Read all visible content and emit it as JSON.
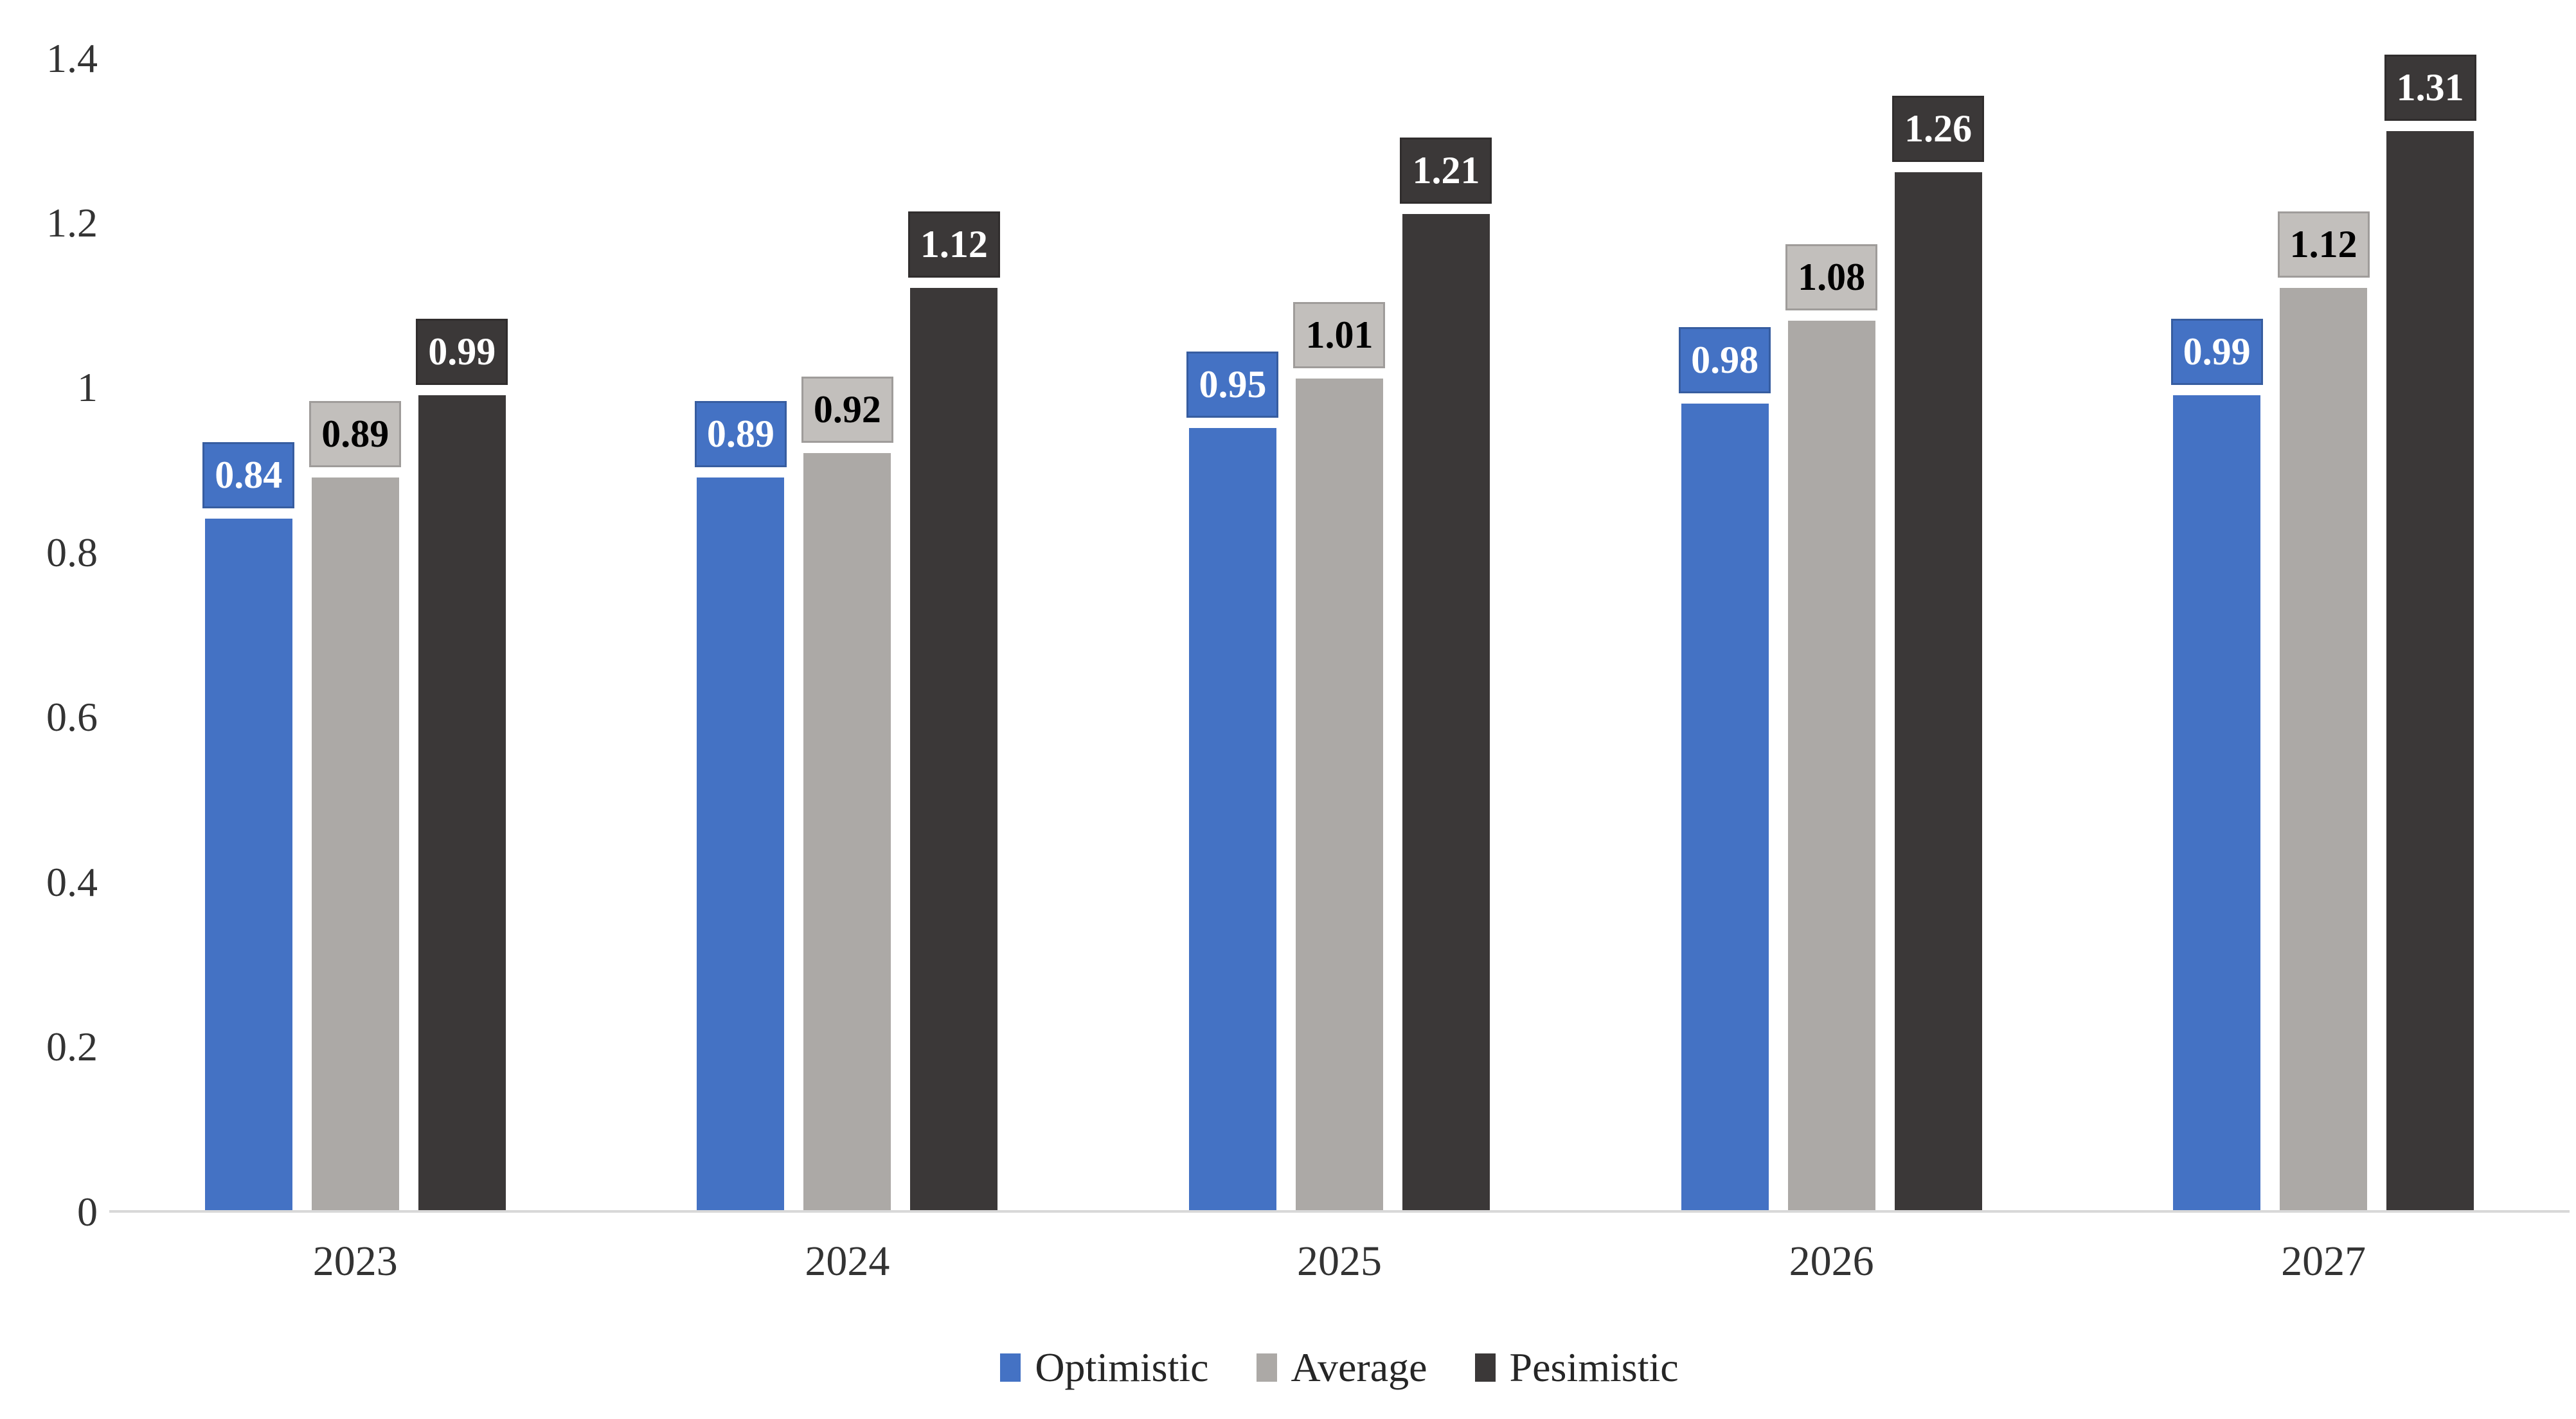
{
  "chart_data": {
    "type": "bar",
    "title": "",
    "xlabel": "",
    "ylabel": "",
    "categories": [
      "2023",
      "2024",
      "2025",
      "2026",
      "2027"
    ],
    "series": [
      {
        "name": "Optimistic",
        "color": "#4472C4",
        "label_fill": "#4472C4",
        "label_text_color": "#FFFFFF",
        "values": [
          0.84,
          0.89,
          0.95,
          0.98,
          0.99
        ]
      },
      {
        "name": "Average",
        "color": "#ACA9A6",
        "label_fill": "#C2BFBC",
        "label_text_color": "#000000",
        "values": [
          0.89,
          0.92,
          1.01,
          1.08,
          1.12
        ]
      },
      {
        "name": "Pesimistic",
        "color": "#3B3838",
        "label_fill": "#3B3838",
        "label_text_color": "#FFFFFF",
        "values": [
          0.99,
          1.12,
          1.21,
          1.26,
          1.31
        ]
      }
    ],
    "y_axis": {
      "min": 0,
      "max": 1.4,
      "ticks": [
        "1.4",
        "1.2",
        "1",
        "0.8",
        "0.6",
        "0.4",
        "0.2",
        "0"
      ]
    },
    "grid": false,
    "data_labels": true,
    "legend_position": "bottom",
    "axis_line_color": "#D8D8D8",
    "text_color": "#333333",
    "background": "#FFFFFF"
  }
}
